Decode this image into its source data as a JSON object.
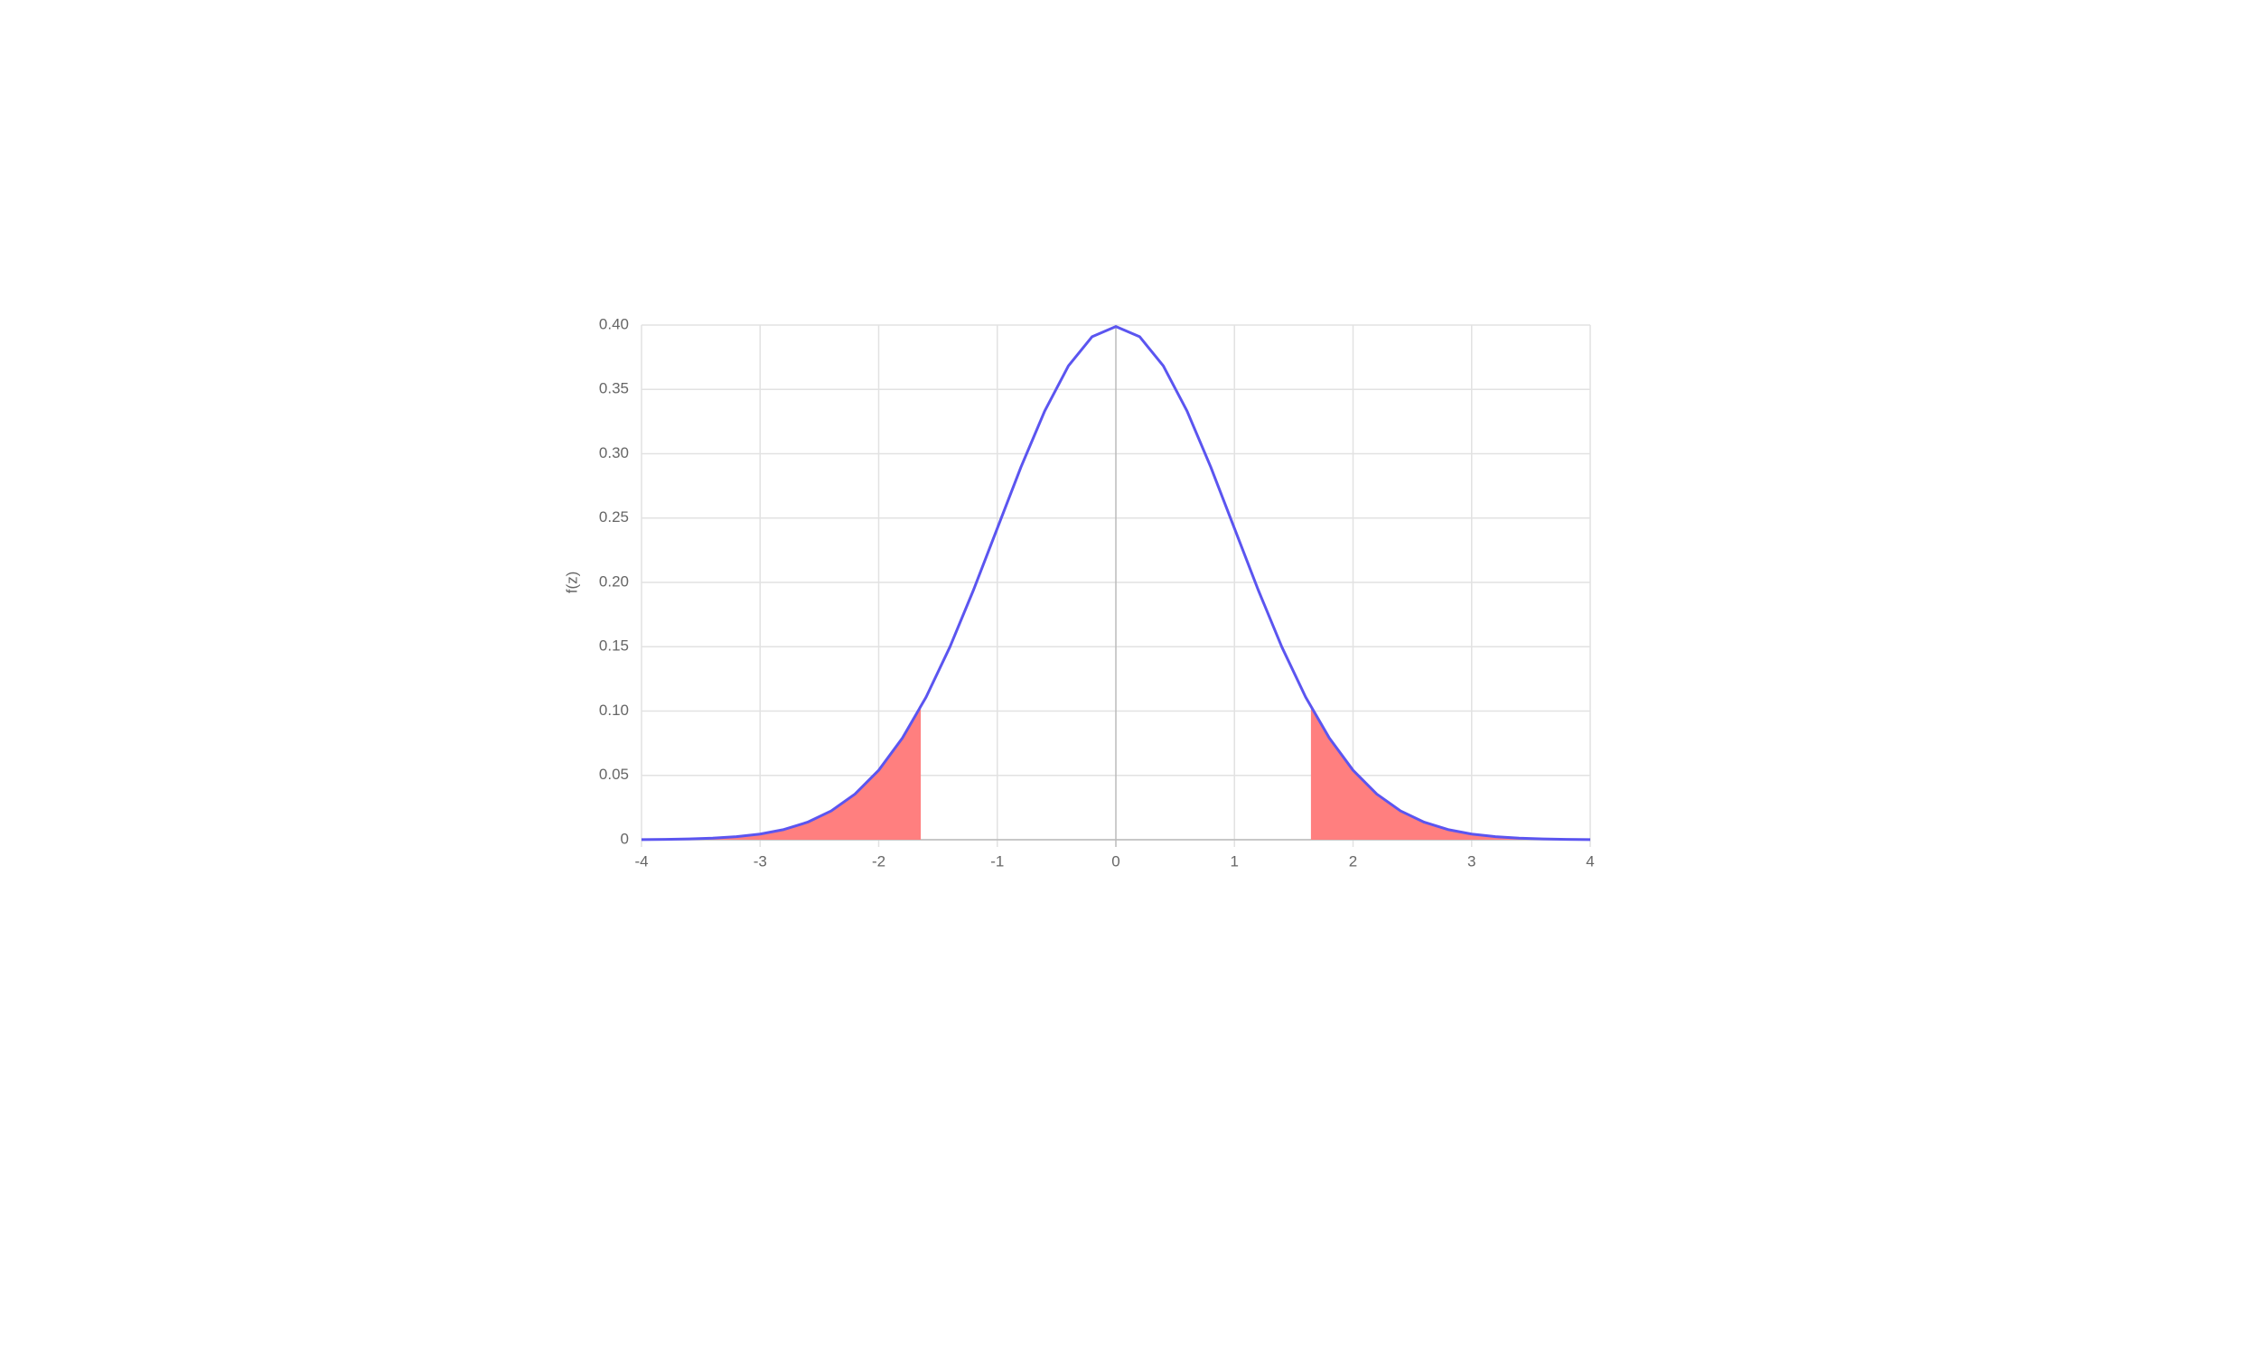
{
  "chart_data": {
    "type": "line",
    "y_label": "f(z)",
    "x": [
      -4,
      -3.8,
      -3.6,
      -3.4,
      -3.2,
      -3,
      -2.8,
      -2.6,
      -2.4,
      -2.2,
      -2,
      -1.8,
      -1.6,
      -1.4,
      -1.2,
      -1,
      -0.8,
      -0.6,
      -0.4,
      -0.2,
      0,
      0.2,
      0.4,
      0.6,
      0.8,
      1,
      1.2,
      1.4,
      1.6,
      1.8,
      2,
      2.2,
      2.4,
      2.6,
      2.8,
      3,
      3.2,
      3.4,
      3.6,
      3.8,
      4
    ],
    "series": [
      {
        "color": "#5b55f0",
        "values": [
          0.0001,
          0.0003,
          0.0006,
          0.0012,
          0.0024,
          0.0044,
          0.0079,
          0.0136,
          0.0224,
          0.0355,
          0.054,
          0.079,
          0.1109,
          0.1497,
          0.1942,
          0.242,
          0.2897,
          0.3332,
          0.3683,
          0.391,
          0.3989,
          0.391,
          0.3683,
          0.3332,
          0.2897,
          0.242,
          0.1942,
          0.1497,
          0.1109,
          0.079,
          0.054,
          0.0355,
          0.0224,
          0.0136,
          0.0079,
          0.0044,
          0.0024,
          0.0012,
          0.0006,
          0.0003,
          0.0001
        ]
      },
      {
        "color": "#ff7f7f",
        "fill": true,
        "x": [
          -4,
          -3.8,
          -3.6,
          -3.4,
          -3.2,
          -3,
          -2.8,
          -2.6,
          -2.4,
          -2.2,
          -2,
          -1.8,
          -1.645
        ],
        "values": [
          0.0001,
          0.0003,
          0.0006,
          0.0012,
          0.0024,
          0.0044,
          0.0079,
          0.0136,
          0.0224,
          0.0355,
          0.054,
          0.079,
          0.103
        ]
      },
      {
        "color": "#ff7f7f",
        "fill": true,
        "x": [
          1.645,
          1.8,
          2,
          2.2,
          2.4,
          2.6,
          2.8,
          3,
          3.2,
          3.4,
          3.6,
          3.8,
          4
        ],
        "values": [
          0.103,
          0.079,
          0.054,
          0.0355,
          0.0224,
          0.0136,
          0.0079,
          0.0044,
          0.0024,
          0.0012,
          0.0006,
          0.0003,
          0.0001
        ]
      }
    ],
    "xlim": [
      -4,
      4
    ],
    "xticks": [
      -4,
      -3,
      -2,
      -1,
      0,
      1,
      2,
      3,
      4
    ],
    "ylim": [
      0,
      0.4
    ],
    "yticks": [
      0,
      0.05,
      {
        "value": 0.1,
        "label": "0.10"
      },
      0.15,
      {
        "value": 0.2,
        "label": "0.20"
      },
      0.25,
      {
        "value": 0.3,
        "label": "0.30"
      },
      0.35,
      {
        "value": 0.4,
        "label": "0.40"
      }
    ],
    "grid": true
  }
}
